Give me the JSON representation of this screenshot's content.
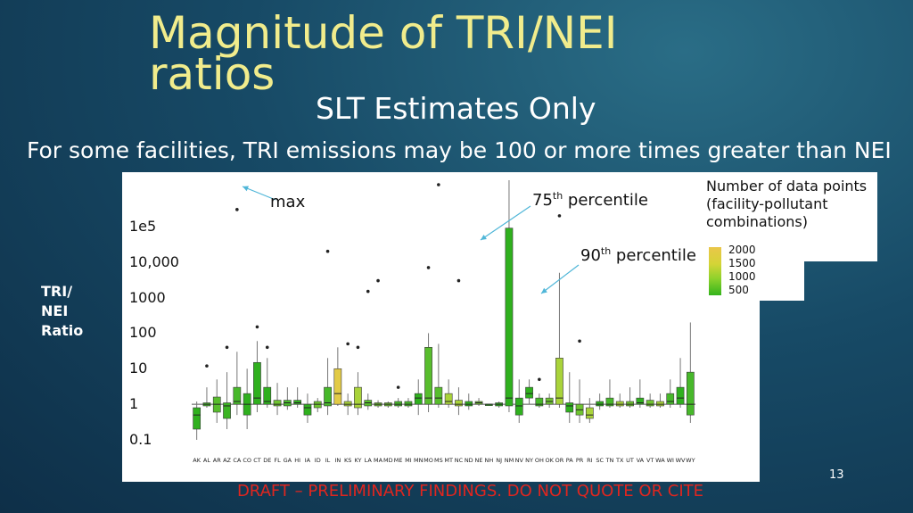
{
  "slide": {
    "title": "Magnitude of TRI/NEI ratios",
    "subtitle": "SLT Estimates Only",
    "intro": "For some facilities, TRI emissions may be 100 or more times greater than NEI",
    "page_number": "13",
    "footer": "DRAFT – PRELIMINARY FINDINGS.  DO NOT QUOTE OR CITE"
  },
  "legend": {
    "title": "Number of data points (facility-pollutant combinations)",
    "colorbar_labels": [
      "2000",
      "1500",
      "1000",
      "500"
    ]
  },
  "annotations": {
    "max": "max",
    "p75_base": "75",
    "p75_sup": "th",
    "p75_rest": " percentile",
    "p90_base": "90",
    "p90_sup": "th",
    "p90_rest": " percentile"
  },
  "colors": {
    "title": "#f1ec8c",
    "footer": "#e0261f",
    "low_count": "#34b41c",
    "high_count": "#eac64a"
  },
  "chart_data": {
    "type": "box",
    "ylabel": "TRI/ NEI Ratio",
    "y_scale": "log",
    "yticks": [
      {
        "value": 100000,
        "label": "1e5"
      },
      {
        "value": 10000,
        "label": "10,000"
      },
      {
        "value": 1000,
        "label": "1000"
      },
      {
        "value": 100,
        "label": "100"
      },
      {
        "value": 10,
        "label": "10"
      },
      {
        "value": 1,
        "label": "1"
      },
      {
        "value": 0.1,
        "label": "0.1"
      }
    ],
    "ylim": [
      0.05,
      3000000
    ],
    "categories": [
      "AK",
      "AL",
      "AR",
      "AZ",
      "CA",
      "CO",
      "CT",
      "DE",
      "FL",
      "GA",
      "HI",
      "IA",
      "ID",
      "IL",
      "IN",
      "KS",
      "KY",
      "LA",
      "MA",
      "MD",
      "ME",
      "MI",
      "MN",
      "MO",
      "MS",
      "MT",
      "NC",
      "ND",
      "NE",
      "NH",
      "NJ",
      "NM",
      "NV",
      "NY",
      "OH",
      "OK",
      "OR",
      "PA",
      "PR",
      "RI",
      "SC",
      "TN",
      "TX",
      "UT",
      "VA",
      "VT",
      "WA",
      "WI",
      "WV",
      "WY"
    ],
    "boxes": [
      {
        "state": "AK",
        "q1": 0.2,
        "med": 0.5,
        "q3": 0.8,
        "wlo": 0.1,
        "whi": 1.2,
        "max": null,
        "fill": "#2fb01e"
      },
      {
        "state": "AL",
        "q1": 0.9,
        "med": 1,
        "q3": 1.1,
        "wlo": 0.8,
        "whi": 3,
        "max": 12,
        "fill": "#47b82a"
      },
      {
        "state": "AR",
        "q1": 0.6,
        "med": 1,
        "q3": 1.6,
        "wlo": 0.3,
        "whi": 5,
        "max": null,
        "fill": "#58bd2d"
      },
      {
        "state": "AZ",
        "q1": 0.4,
        "med": 0.9,
        "q3": 1.1,
        "wlo": 0.2,
        "whi": 8,
        "max": 40,
        "fill": "#3bb422"
      },
      {
        "state": "CA",
        "q1": 1,
        "med": 1.2,
        "q3": 3,
        "wlo": 0.5,
        "whi": 30,
        "max": 300000,
        "fill": "#47b82a"
      },
      {
        "state": "CO",
        "q1": 0.5,
        "med": 1,
        "q3": 2,
        "wlo": 0.2,
        "whi": 10,
        "max": null,
        "fill": "#2fb01e"
      },
      {
        "state": "CT",
        "q1": 1,
        "med": 1.5,
        "q3": 15,
        "wlo": 0.6,
        "whi": 60,
        "max": 150,
        "fill": "#2fb01e"
      },
      {
        "state": "DE",
        "q1": 1,
        "med": 1.2,
        "q3": 3,
        "wlo": 0.8,
        "whi": 20,
        "max": 40,
        "fill": "#2fb01e"
      },
      {
        "state": "FL",
        "q1": 0.9,
        "med": 1,
        "q3": 1.3,
        "wlo": 0.5,
        "whi": 4,
        "max": null,
        "fill": "#6fc431"
      },
      {
        "state": "GA",
        "q1": 0.9,
        "med": 1.1,
        "q3": 1.3,
        "wlo": 0.7,
        "whi": 3,
        "max": null,
        "fill": "#47b82a"
      },
      {
        "state": "HI",
        "q1": 1,
        "med": 1.1,
        "q3": 1.3,
        "wlo": 0.8,
        "whi": 3,
        "max": null,
        "fill": "#2fb01e"
      },
      {
        "state": "IA",
        "q1": 0.5,
        "med": 0.8,
        "q3": 1,
        "wlo": 0.3,
        "whi": 2,
        "max": null,
        "fill": "#2fb01e"
      },
      {
        "state": "ID",
        "q1": 0.8,
        "med": 1,
        "q3": 1.2,
        "wlo": 0.6,
        "whi": 1.5,
        "max": null,
        "fill": "#6fc431"
      },
      {
        "state": "IL",
        "q1": 0.9,
        "med": 1.1,
        "q3": 3,
        "wlo": 0.5,
        "whi": 20,
        "max": 20000,
        "fill": "#47b82a"
      },
      {
        "state": "IN",
        "q1": 1,
        "med": 2,
        "q3": 10,
        "wlo": 0.9,
        "whi": 40,
        "max": null,
        "fill": "#e2cb47"
      },
      {
        "state": "KS",
        "q1": 0.9,
        "med": 1,
        "q3": 1.2,
        "wlo": 0.5,
        "whi": 2,
        "max": 50,
        "fill": "#a9d33a"
      },
      {
        "state": "KY",
        "q1": 0.8,
        "med": 1,
        "q3": 3,
        "wlo": 0.5,
        "whi": 8,
        "max": 40,
        "fill": "#a9d33a"
      },
      {
        "state": "LA",
        "q1": 0.9,
        "med": 1.1,
        "q3": 1.3,
        "wlo": 0.7,
        "whi": 2,
        "max": 1500,
        "fill": "#58bd2d"
      },
      {
        "state": "MA",
        "q1": 0.9,
        "med": 1,
        "q3": 1.1,
        "wlo": 0.8,
        "whi": 1.3,
        "max": 3000,
        "fill": "#6fc431"
      },
      {
        "state": "MD",
        "q1": 0.9,
        "med": 1,
        "q3": 1.1,
        "wlo": 0.8,
        "whi": 1.2,
        "max": null,
        "fill": "#6fc431"
      },
      {
        "state": "ME",
        "q1": 0.9,
        "med": 1,
        "q3": 1.2,
        "wlo": 0.8,
        "whi": 1.5,
        "max": 3,
        "fill": "#47b82a"
      },
      {
        "state": "MI",
        "q1": 0.9,
        "med": 1,
        "q3": 1.2,
        "wlo": 0.8,
        "whi": 1.5,
        "max": null,
        "fill": "#47b82a"
      },
      {
        "state": "MN",
        "q1": 1,
        "med": 1.5,
        "q3": 2,
        "wlo": 0.5,
        "whi": 5,
        "max": null,
        "fill": "#2fb01e"
      },
      {
        "state": "MO",
        "q1": 1,
        "med": 1.5,
        "q3": 40,
        "wlo": 0.6,
        "whi": 100,
        "max": 7000,
        "fill": "#58bd2d"
      },
      {
        "state": "MS",
        "q1": 1,
        "med": 1.5,
        "q3": 3,
        "wlo": 0.8,
        "whi": 50,
        "max": 1500000,
        "fill": "#58bd2d"
      },
      {
        "state": "MT",
        "q1": 1,
        "med": 1.2,
        "q3": 2,
        "wlo": 0.8,
        "whi": 5,
        "max": null,
        "fill": "#a9d33a"
      },
      {
        "state": "NC",
        "q1": 0.9,
        "med": 1,
        "q3": 1.3,
        "wlo": 0.5,
        "whi": 3,
        "max": 3000,
        "fill": "#a9d33a"
      },
      {
        "state": "ND",
        "q1": 0.9,
        "med": 1,
        "q3": 1.2,
        "wlo": 0.7,
        "whi": 2,
        "max": null,
        "fill": "#2fb01e"
      },
      {
        "state": "NE",
        "q1": 1,
        "med": 1.1,
        "q3": 1.2,
        "wlo": 0.9,
        "whi": 1.5,
        "max": null,
        "fill": "#6fc431"
      },
      {
        "state": "NH",
        "q1": 1,
        "med": 1,
        "q3": 1,
        "wlo": 1,
        "whi": 1,
        "max": null,
        "fill": "#2fb01e"
      },
      {
        "state": "NJ",
        "q1": 0.9,
        "med": 1,
        "q3": 1.1,
        "wlo": 0.8,
        "whi": 1.2,
        "max": null,
        "fill": "#2fb01e"
      },
      {
        "state": "NM",
        "q1": 0.9,
        "med": 1.5,
        "q3": 90000,
        "wlo": 0.6,
        "whi": 2000000,
        "max": null,
        "fill": "#2fb01e"
      },
      {
        "state": "NV",
        "q1": 0.5,
        "med": 0.9,
        "q3": 1.5,
        "wlo": 0.3,
        "whi": 5,
        "max": null,
        "fill": "#2fb01e"
      },
      {
        "state": "NY",
        "q1": 1.5,
        "med": 2,
        "q3": 3,
        "wlo": 1,
        "whi": 5,
        "max": null,
        "fill": "#2fb01e"
      },
      {
        "state": "OH",
        "q1": 0.9,
        "med": 1,
        "q3": 1.5,
        "wlo": 0.8,
        "whi": 2,
        "max": 5,
        "fill": "#47b82a"
      },
      {
        "state": "OK",
        "q1": 1,
        "med": 1.2,
        "q3": 1.5,
        "wlo": 0.8,
        "whi": 2,
        "max": null,
        "fill": "#6fc431"
      },
      {
        "state": "OR",
        "q1": 1,
        "med": 1.5,
        "q3": 20,
        "wlo": 0.8,
        "whi": 5000,
        "max": 200000,
        "fill": "#a9d33a"
      },
      {
        "state": "PA",
        "q1": 0.6,
        "med": 0.9,
        "q3": 1.1,
        "wlo": 0.3,
        "whi": 8,
        "max": null,
        "fill": "#2fb01e"
      },
      {
        "state": "PR",
        "q1": 0.5,
        "med": 0.7,
        "q3": 1,
        "wlo": 0.3,
        "whi": 5,
        "max": 60,
        "fill": "#6fc431"
      },
      {
        "state": "RI",
        "q1": 0.4,
        "med": 0.5,
        "q3": 0.8,
        "wlo": 0.3,
        "whi": 1.5,
        "max": null,
        "fill": "#a9d33a"
      },
      {
        "state": "SC",
        "q1": 0.9,
        "med": 1,
        "q3": 1.2,
        "wlo": 0.7,
        "whi": 2,
        "max": null,
        "fill": "#2fb01e"
      },
      {
        "state": "TN",
        "q1": 0.9,
        "med": 1,
        "q3": 1.5,
        "wlo": 0.8,
        "whi": 5,
        "max": null,
        "fill": "#47b82a"
      },
      {
        "state": "TX",
        "q1": 0.9,
        "med": 1,
        "q3": 1.2,
        "wlo": 0.8,
        "whi": 2,
        "max": null,
        "fill": "#a9d33a"
      },
      {
        "state": "UT",
        "q1": 0.9,
        "med": 1,
        "q3": 1.2,
        "wlo": 0.8,
        "whi": 3,
        "max": null,
        "fill": "#6fc431"
      },
      {
        "state": "VA",
        "q1": 1,
        "med": 1.1,
        "q3": 1.5,
        "wlo": 0.8,
        "whi": 5,
        "max": null,
        "fill": "#2fb01e"
      },
      {
        "state": "VT",
        "q1": 0.9,
        "med": 1,
        "q3": 1.3,
        "wlo": 0.8,
        "whi": 2,
        "max": null,
        "fill": "#6fc431"
      },
      {
        "state": "WA",
        "q1": 0.9,
        "med": 1,
        "q3": 1.2,
        "wlo": 0.8,
        "whi": 2,
        "max": null,
        "fill": "#a9d33a"
      },
      {
        "state": "WI",
        "q1": 1,
        "med": 1.2,
        "q3": 2,
        "wlo": 0.8,
        "whi": 5,
        "max": null,
        "fill": "#47b82a"
      },
      {
        "state": "WV",
        "q1": 1,
        "med": 1.5,
        "q3": 3,
        "wlo": 0.8,
        "whi": 20,
        "max": null,
        "fill": "#2fb01e"
      },
      {
        "state": "WY",
        "q1": 0.5,
        "med": 1,
        "q3": 8,
        "wlo": 0.3,
        "whi": 200,
        "max": null,
        "fill": "#47b82a"
      }
    ]
  }
}
